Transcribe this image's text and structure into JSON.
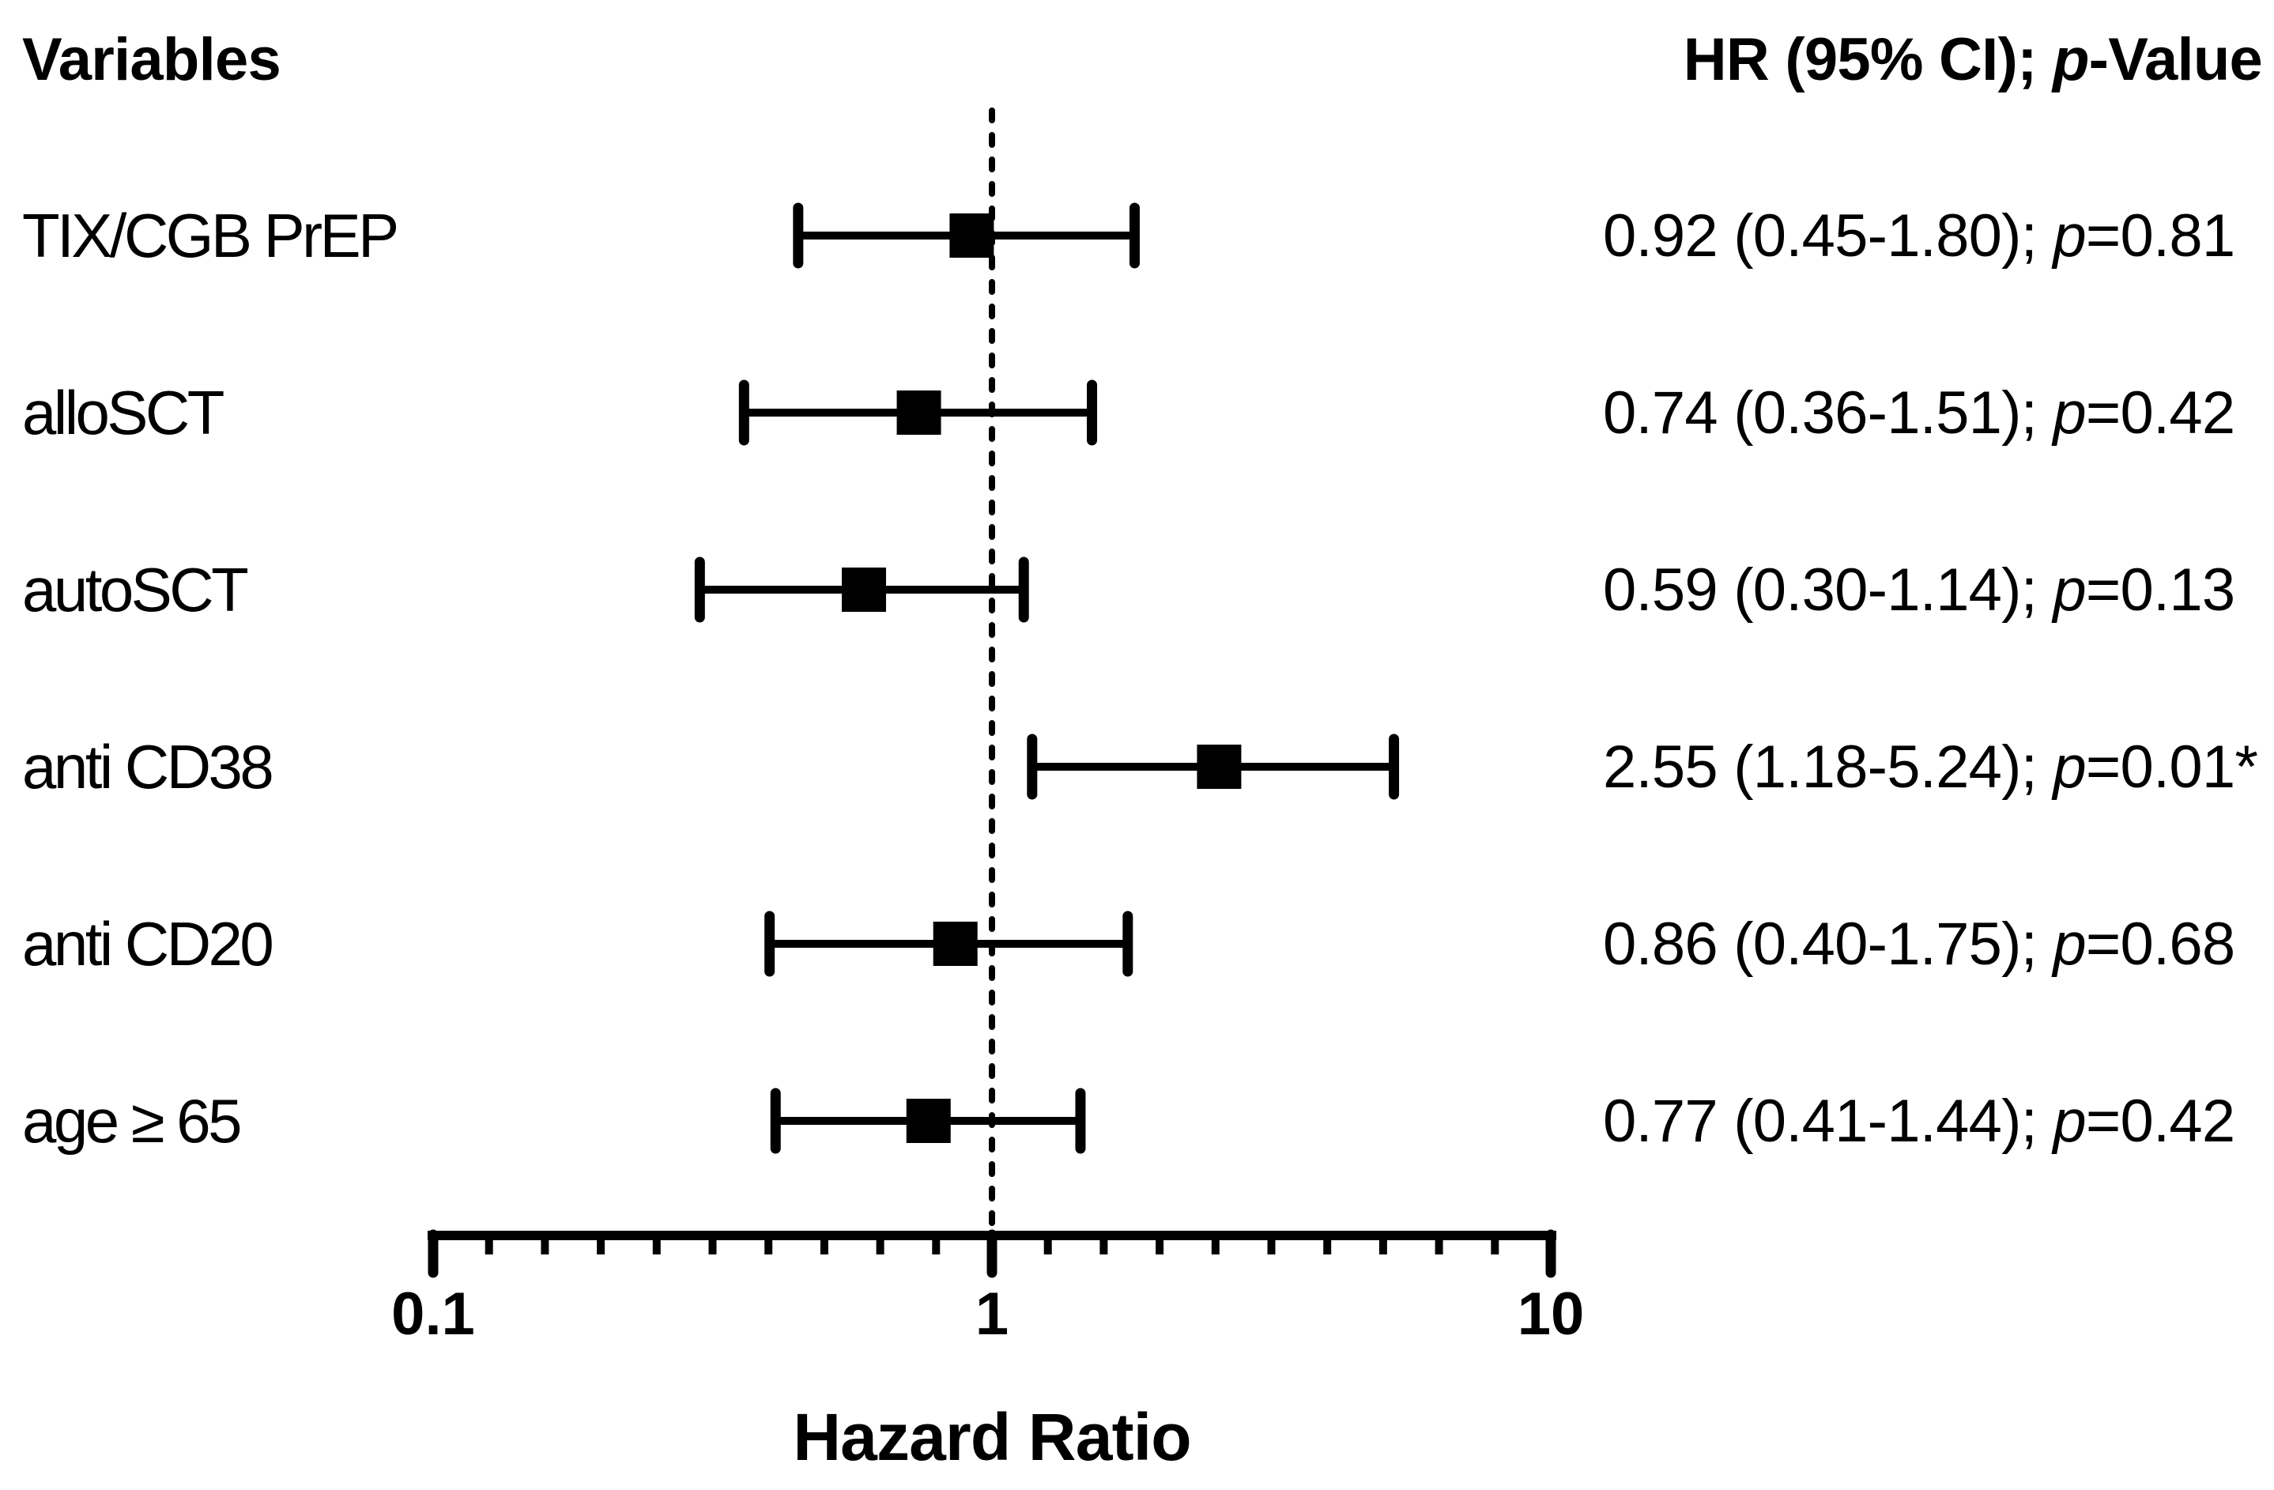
{
  "figure": {
    "background_color": "#ffffff",
    "foreground_color": "#000000"
  },
  "header": {
    "variables_label": "Variables",
    "hr_header_prefix": "HR (95% CI); ",
    "hr_header_italic": "p",
    "hr_header_suffix": "-Value"
  },
  "chart_data": {
    "type": "forest-plot",
    "xlabel": "Hazard Ratio",
    "x_scale": "log10",
    "xlim": [
      0.1,
      10
    ],
    "x_ticks": [
      0.1,
      1,
      10
    ],
    "x_tick_labels": [
      "0.1",
      "1",
      "10"
    ],
    "minor_divisions_per_decade": 10,
    "reference_line_x": 1,
    "reference_line_style": "dotted",
    "marker": "filled-square",
    "p_symbol": "p",
    "rows": [
      {
        "label": "TIX/CGB PrEP",
        "hr": 0.92,
        "ci_low": 0.45,
        "ci_high": 1.8,
        "p_value": "0.81",
        "display": {
          "ci_part": "0.92 (0.45-1.80); ",
          "p_part": "=0.81"
        }
      },
      {
        "label": "alloSCT",
        "hr": 0.74,
        "ci_low": 0.36,
        "ci_high": 1.51,
        "p_value": "0.42",
        "display": {
          "ci_part": "0.74 (0.36-1.51); ",
          "p_part": "=0.42"
        }
      },
      {
        "label": "autoSCT",
        "hr": 0.59,
        "ci_low": 0.3,
        "ci_high": 1.14,
        "p_value": "0.13",
        "display": {
          "ci_part": "0.59 (0.30-1.14); ",
          "p_part": "=0.13"
        }
      },
      {
        "label": "anti CD38",
        "hr": 2.55,
        "ci_low": 1.18,
        "ci_high": 5.24,
        "p_value": "0.01*",
        "display": {
          "ci_part": "2.55 (1.18-5.24); ",
          "p_part": "=0.01*"
        }
      },
      {
        "label": "anti CD20",
        "hr": 0.86,
        "ci_low": 0.4,
        "ci_high": 1.75,
        "p_value": "0.68",
        "display": {
          "ci_part": "0.86 (0.40-1.75); ",
          "p_part": "=0.68"
        }
      },
      {
        "label": "age ≥ 65",
        "hr": 0.77,
        "ci_low": 0.41,
        "ci_high": 1.44,
        "p_value": "0.42",
        "display": {
          "ci_part": "0.77 (0.41-1.44); ",
          "p_part": "=0.42"
        }
      }
    ]
  }
}
